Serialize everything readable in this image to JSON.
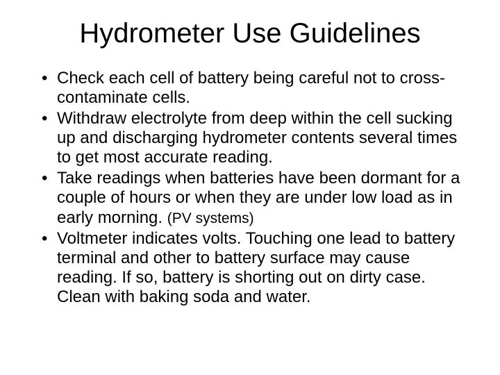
{
  "title": "Hydrometer Use Guidelines",
  "bullets": [
    {
      "text": "Check each cell of battery being careful not to cross-contaminate cells."
    },
    {
      "text": "Withdraw electrolyte from deep within the cell sucking up and discharging hydrometer contents several times to get most accurate reading."
    },
    {
      "text": "Take readings when batteries have been dormant for a couple of hours or when they are under low load as in early morning. ",
      "trailing_small": "(PV systems)"
    },
    {
      "text": "Voltmeter indicates volts. Touching one lead to battery terminal and other to battery surface may cause reading. If so, battery is shorting out on dirty case. Clean with baking soda and water."
    }
  ]
}
